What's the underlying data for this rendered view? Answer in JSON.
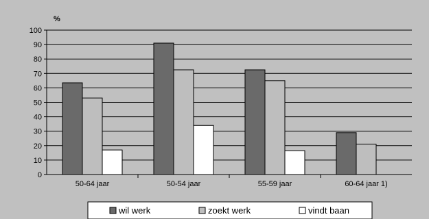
{
  "chart_data": {
    "type": "bar",
    "ylabel": "%",
    "ylim": [
      0,
      100
    ],
    "ytick_step": 10,
    "grid": true,
    "legend_position": "bottom",
    "categories": [
      "50-64 jaar",
      "50-54 jaar",
      "55-59 jaar",
      "60-64 jaar 1)"
    ],
    "series": [
      {
        "name": "wil werk",
        "color": "#6a6a6a",
        "values": [
          63.5,
          91,
          72.5,
          29
        ]
      },
      {
        "name": "zoekt werk",
        "color": "#bebebe",
        "values": [
          53,
          72.5,
          65,
          21
        ]
      },
      {
        "name": "vindt baan",
        "color": "#ffffff",
        "values": [
          17,
          34,
          16.5,
          null
        ]
      }
    ]
  }
}
